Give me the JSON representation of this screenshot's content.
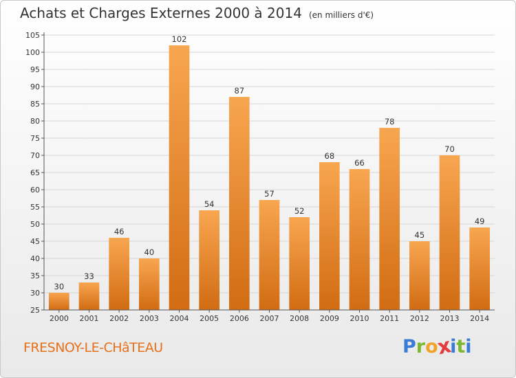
{
  "title": "Achats et Charges Externes 2000 à 2014",
  "unit": "(en milliers d'€)",
  "commune": "FRESNOY-LE-CHâTEAU",
  "logo": {
    "letters": [
      "P",
      "r",
      "o",
      "x",
      "i",
      "t",
      "i"
    ],
    "colors": [
      "#3a7bd5",
      "#7cb82f",
      "#f0a32a",
      "#e23c3c",
      "#3a7bd5",
      "#7cb82f",
      "#3a7bd5"
    ]
  },
  "colors": {
    "bar_light": "#f8a650",
    "bar_dark": "#d16c12",
    "grid": "#d6d6d6"
  },
  "chart_data": {
    "type": "bar",
    "categories": [
      "2000",
      "2001",
      "2002",
      "2003",
      "2004",
      "2005",
      "2006",
      "2007",
      "2008",
      "2009",
      "2010",
      "2011",
      "2012",
      "2013",
      "2014"
    ],
    "values": [
      30,
      33,
      46,
      40,
      102,
      54,
      87,
      57,
      52,
      68,
      66,
      78,
      45,
      70,
      49
    ],
    "ylim": [
      25,
      105
    ],
    "yticks": [
      25,
      30,
      35,
      40,
      45,
      50,
      55,
      60,
      65,
      70,
      75,
      80,
      85,
      90,
      95,
      100,
      105
    ],
    "grid": true
  }
}
